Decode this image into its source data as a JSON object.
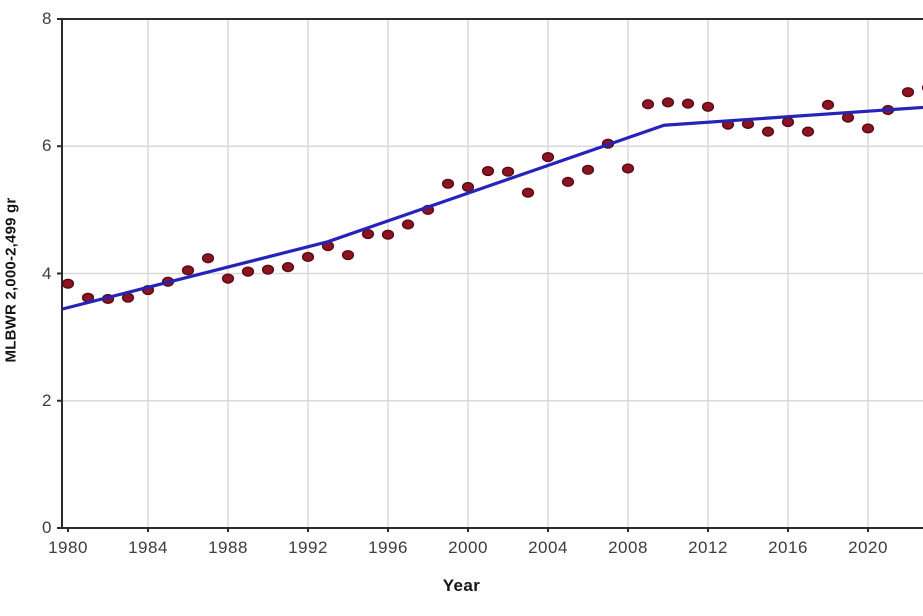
{
  "chart_data": {
    "type": "scatter",
    "title": "",
    "xlabel": "Year",
    "ylabel": "MLBWR 2,000-2,499 gr",
    "xlim": [
      1979.7,
      2023.05
    ],
    "ylim": [
      0,
      8
    ],
    "yticks": [
      0,
      2,
      4,
      6,
      8
    ],
    "xticks": [
      1980,
      1984,
      1988,
      1992,
      1996,
      2000,
      2004,
      2008,
      2012,
      2016,
      2020
    ],
    "grid": true,
    "legend": "none",
    "series": [
      {
        "name": "observed-rate-points",
        "kind": "scatter",
        "x": [
          1980,
          1981,
          1982,
          1983,
          1984,
          1985,
          1986,
          1987,
          1988,
          1989,
          1990,
          1991,
          1992,
          1993,
          1994,
          1995,
          1996,
          1997,
          1998,
          1999,
          2000,
          2001,
          2002,
          2003,
          2004,
          2005,
          2006,
          2007,
          2008,
          2009,
          2010,
          2011,
          2012,
          2013,
          2014,
          2015,
          2016,
          2017,
          2018,
          2019,
          2020,
          2021,
          2022,
          2023
        ],
        "y": [
          3.84,
          3.62,
          3.6,
          3.62,
          3.74,
          3.87,
          4.05,
          4.24,
          3.92,
          4.03,
          4.06,
          4.1,
          4.26,
          4.43,
          4.29,
          4.62,
          4.61,
          4.77,
          5.0,
          5.41,
          5.36,
          5.61,
          5.6,
          5.27,
          5.83,
          5.44,
          5.63,
          6.04,
          5.65,
          6.66,
          6.69,
          6.67,
          6.62,
          6.34,
          6.35,
          6.23,
          6.38,
          6.23,
          6.65,
          6.45,
          6.28,
          6.57,
          6.85,
          6.92
        ]
      },
      {
        "name": "joinpoint-trend-line",
        "kind": "line",
        "points": [
          [
            1979.7,
            3.44
          ],
          [
            1993.0,
            4.5
          ],
          [
            2009.8,
            6.33
          ],
          [
            2023.2,
            6.62
          ]
        ]
      }
    ]
  },
  "colors": {
    "point_fill": "#8b1421",
    "point_stroke": "#5a0a14",
    "trend_line": "#2424bb",
    "gridline": "#d9d9d9",
    "axis": "#2b2b2b",
    "tick_text": "#3d3d3d",
    "label_text": "#141414",
    "background": "#fefefe"
  }
}
